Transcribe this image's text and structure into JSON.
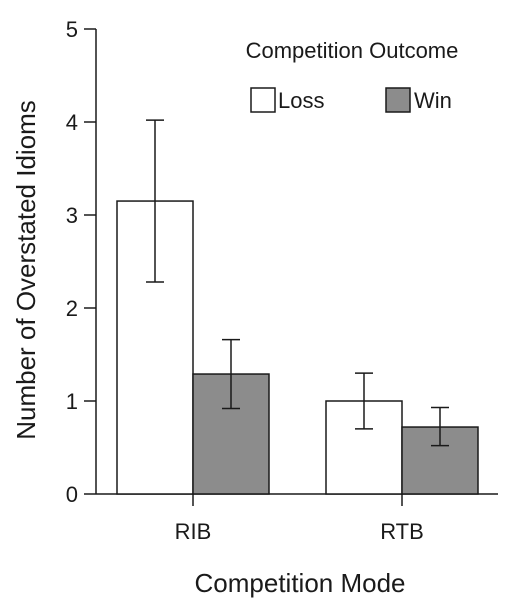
{
  "chart_data": {
    "type": "bar",
    "title": "",
    "xlabel": "Competition Mode",
    "ylabel": "Number of Overstated Idioms",
    "ylim": [
      0,
      5
    ],
    "yticks": [
      0,
      1,
      2,
      3,
      4,
      5
    ],
    "categories": [
      "RIB",
      "RTB"
    ],
    "legend": {
      "title": "Competition Outcome",
      "placement": "top-right"
    },
    "series": [
      {
        "name": "Loss",
        "color": "#ffffff",
        "values": [
          3.15,
          1.0
        ],
        "error_low": [
          2.28,
          0.7
        ],
        "error_high": [
          4.02,
          1.3
        ]
      },
      {
        "name": "Win",
        "color": "#8c8c8c",
        "values": [
          1.29,
          0.72
        ],
        "error_low": [
          0.92,
          0.52
        ],
        "error_high": [
          1.66,
          0.93
        ]
      }
    ],
    "grid": false,
    "error_bars": true
  }
}
